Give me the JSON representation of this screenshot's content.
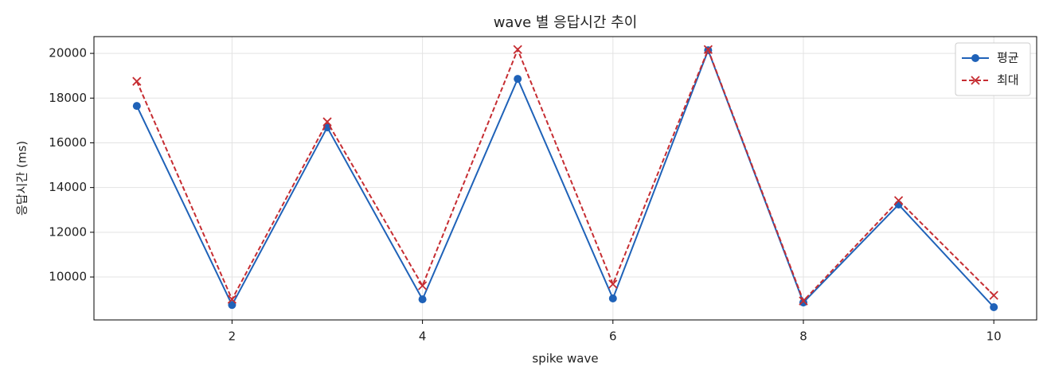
{
  "chart_data": {
    "type": "line",
    "title": "wave 별 응답시간 추이",
    "x_label": "spike wave",
    "y_label": "응답시간 (ms)",
    "x": [
      1,
      2,
      3,
      4,
      5,
      6,
      7,
      8,
      9,
      10
    ],
    "series": [
      {
        "name": "평균",
        "color": "#1f62b8",
        "marker": "o",
        "dash": "solid",
        "values": [
          17650,
          8750,
          16690,
          9000,
          18860,
          9040,
          20140,
          8860,
          13240,
          8650
        ]
      },
      {
        "name": "최대",
        "color": "#c62d32",
        "marker": "x",
        "dash": "dashed",
        "values": [
          18750,
          9000,
          16940,
          9610,
          20170,
          9680,
          20170,
          8930,
          13420,
          9180
        ]
      }
    ],
    "xlim": [
      0.55,
      10.45
    ],
    "xticks": [
      2,
      4,
      6,
      8,
      10
    ],
    "ylim": [
      8080,
      20750
    ],
    "yticks": [
      10000,
      12000,
      14000,
      16000,
      18000,
      20000
    ],
    "grid": true,
    "legend": "upper right"
  }
}
